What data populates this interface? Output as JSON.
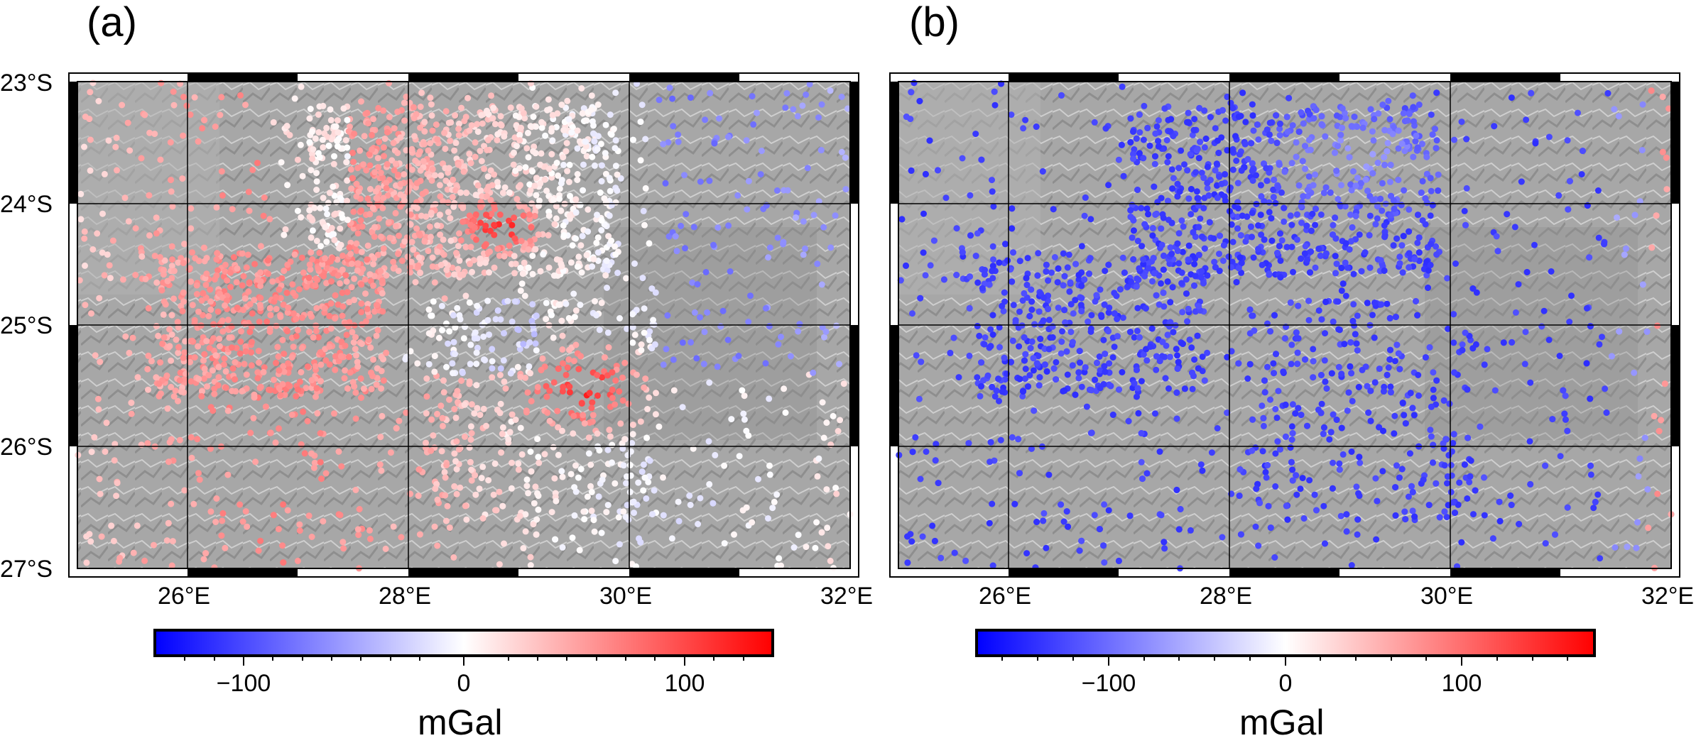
{
  "panels": [
    {
      "id": "a",
      "label": "(a)",
      "region": {
        "lon_min": 25,
        "lon_max": 32,
        "lat_min": -27,
        "lat_max": -23
      },
      "lat_tick_labels": [
        "23°S",
        "24°S",
        "25°S",
        "26°S",
        "27°S"
      ],
      "lon_tick_labels": [
        "26°E",
        "28°E",
        "30°E",
        "32°E"
      ],
      "colorbar": {
        "cmap": "polar (blue-white-red)",
        "range": [
          -140,
          140
        ],
        "tick_labels": [
          "−100",
          "0",
          "100"
        ],
        "tick_values": [
          -100,
          0,
          100
        ],
        "unit": "mGal",
        "colors": {
          "low": "#0000ff",
          "mid": "#ffffff",
          "high": "#ff0000"
        }
      },
      "data_pattern": "mostly white to red anomalies, red maxima near 29.7°E 25.6°S and 28.9°E 24.2°S, light blue in north-east"
    },
    {
      "id": "b",
      "label": "(b)",
      "region": {
        "lon_min": 25,
        "lon_max": 32,
        "lat_min": -27,
        "lat_max": -23
      },
      "lat_tick_labels": [],
      "lon_tick_labels": [
        "26°E",
        "28°E",
        "30°E",
        "32°E"
      ],
      "colorbar": {
        "cmap": "polar (blue-white-red)",
        "range": [
          -175,
          175
        ],
        "tick_labels": [
          "−100",
          "0",
          "100"
        ],
        "tick_values": [
          -100,
          0,
          100
        ],
        "unit": "mGal",
        "colors": {
          "low": "#0000ff",
          "mid": "#ffffff",
          "high": "#ff0000"
        }
      },
      "data_pattern": "almost entirely blue (strongly negative) anomalies, lighter near north-centre and eastern edge"
    }
  ],
  "colors": {
    "background": "#ffffff",
    "terrain": "#a9a9a9",
    "frame": "#000000",
    "grid": "#000000"
  }
}
